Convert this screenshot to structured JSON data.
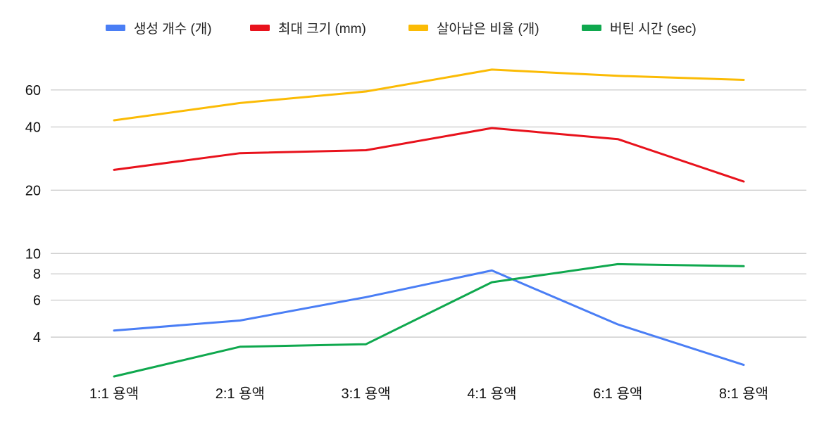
{
  "chart_data": {
    "type": "line",
    "title": "",
    "xlabel": "",
    "ylabel": "",
    "yscale": "log",
    "ylim": [
      2.6,
      80
    ],
    "yticks": [
      4,
      6,
      8,
      10,
      20,
      40,
      60
    ],
    "grid": true,
    "legend_position": "top",
    "categories": [
      "1:1 용액",
      "2:1 용액",
      "3:1 용액",
      "4:1 용액",
      "6:1 용액",
      "8:1 용액"
    ],
    "series": [
      {
        "name": "생성 개수 (개)",
        "color": "#4a7ef5",
        "values": [
          4.3,
          4.8,
          6.2,
          8.3,
          4.6,
          2.95
        ]
      },
      {
        "name": "최대 크기 (mm)",
        "color": "#e8121c",
        "values": [
          25,
          30,
          31,
          39.5,
          35,
          22
        ]
      },
      {
        "name": "살아남은 비율 (개)",
        "color": "#fbbb05",
        "values": [
          43,
          52,
          59,
          75,
          70,
          67
        ]
      },
      {
        "name": "버틴 시간 (sec)",
        "color": "#0fa84e",
        "values": [
          2.6,
          3.6,
          3.7,
          7.3,
          8.9,
          8.7
        ]
      }
    ]
  }
}
